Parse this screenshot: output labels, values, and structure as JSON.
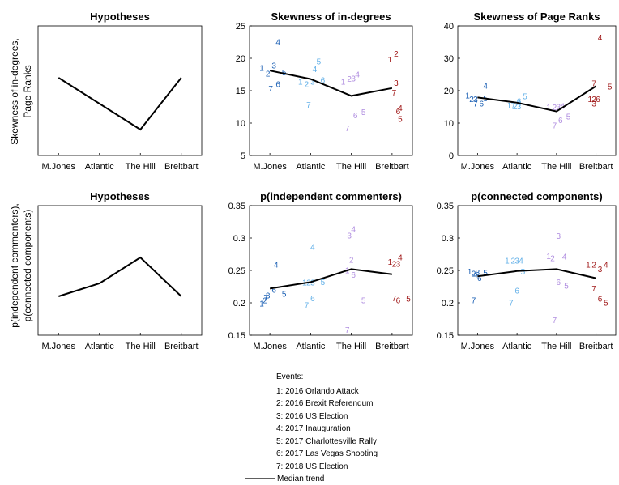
{
  "ylabels": {
    "row1": [
      "Skewness of in-degrees,",
      "Page Ranks"
    ],
    "row2": [
      "p(independent commenters),",
      "p(connected components)"
    ]
  },
  "outlets": [
    "M.Jones",
    "Atlantic",
    "The Hill",
    "Breitbart"
  ],
  "outlet_colors": [
    "#1a5fb4",
    "#62b0e8",
    "#b08ee0",
    "#a01818"
  ],
  "legend": {
    "title": "Events:",
    "items": [
      "1: 2016 Orlando Attack",
      "2: 2016 Brexit Referendum",
      "3: 2016 US Election",
      "4: 2017 Inauguration",
      "5: 2017 Charlottesville Rally",
      "6: 2017 Las Vegas Shooting",
      "7: 2018 US Election"
    ],
    "line_label": "Median trend"
  },
  "chart_data": [
    {
      "type": "line",
      "title": "Hypotheses",
      "categories": [
        "M.Jones",
        "Atlantic",
        "The Hill",
        "Breitbart"
      ],
      "series": [
        {
          "values": [
            3,
            2,
            1,
            3
          ]
        }
      ],
      "ylim": [
        0,
        5
      ],
      "grid": false,
      "show_yticks": false
    },
    {
      "type": "scatter",
      "title": "Skewness of in-degrees",
      "categories": [
        "M.Jones",
        "Atlantic",
        "The Hill",
        "Breitbart"
      ],
      "ylim": [
        5,
        25
      ],
      "yticks": [
        5,
        10,
        15,
        20,
        25
      ],
      "median": [
        18.1,
        16.8,
        14.2,
        15.4
      ],
      "points": [
        {
          "cat": 0,
          "event": "1",
          "x": -0.2,
          "y": 18.5
        },
        {
          "cat": 0,
          "event": "2",
          "x": -0.05,
          "y": 17.6
        },
        {
          "cat": 0,
          "event": "3",
          "x": 0.1,
          "y": 18.9
        },
        {
          "cat": 0,
          "event": "4",
          "x": 0.2,
          "y": 22.5
        },
        {
          "cat": 0,
          "event": "5",
          "x": 0.35,
          "y": 17.8
        },
        {
          "cat": 0,
          "event": "6",
          "x": 0.2,
          "y": 16.0
        },
        {
          "cat": 0,
          "event": "7",
          "x": 0.02,
          "y": 15.3
        },
        {
          "cat": 1,
          "event": "1",
          "x": -0.25,
          "y": 16.4
        },
        {
          "cat": 1,
          "event": "2",
          "x": -0.1,
          "y": 16.0
        },
        {
          "cat": 1,
          "event": "3",
          "x": 0.05,
          "y": 16.4
        },
        {
          "cat": 1,
          "event": "4",
          "x": 0.1,
          "y": 18.3
        },
        {
          "cat": 1,
          "event": "5",
          "x": 0.2,
          "y": 19.5
        },
        {
          "cat": 1,
          "event": "6",
          "x": 0.3,
          "y": 16.6
        },
        {
          "cat": 1,
          "event": "7",
          "x": -0.05,
          "y": 12.8
        },
        {
          "cat": 2,
          "event": "1",
          "x": -0.2,
          "y": 16.4
        },
        {
          "cat": 2,
          "event": "2",
          "x": -0.05,
          "y": 16.8
        },
        {
          "cat": 2,
          "event": "3",
          "x": 0.05,
          "y": 16.9
        },
        {
          "cat": 2,
          "event": "4",
          "x": 0.15,
          "y": 17.5
        },
        {
          "cat": 2,
          "event": "5",
          "x": 0.3,
          "y": 11.7
        },
        {
          "cat": 2,
          "event": "6",
          "x": 0.1,
          "y": 11.2
        },
        {
          "cat": 2,
          "event": "7",
          "x": -0.1,
          "y": 9.2
        },
        {
          "cat": 3,
          "event": "1",
          "x": -0.05,
          "y": 19.8
        },
        {
          "cat": 3,
          "event": "2",
          "x": 0.1,
          "y": 20.7
        },
        {
          "cat": 3,
          "event": "3",
          "x": 0.1,
          "y": 16.2
        },
        {
          "cat": 3,
          "event": "4",
          "x": 0.2,
          "y": 12.3
        },
        {
          "cat": 3,
          "event": "5",
          "x": 0.2,
          "y": 10.6
        },
        {
          "cat": 3,
          "event": "6",
          "x": 0.15,
          "y": 11.8
        },
        {
          "cat": 3,
          "event": "7",
          "x": 0.05,
          "y": 14.7
        }
      ]
    },
    {
      "type": "scatter",
      "title": "Skewness of Page Ranks",
      "categories": [
        "M.Jones",
        "Atlantic",
        "The Hill",
        "Breitbart"
      ],
      "ylim": [
        0,
        40
      ],
      "yticks": [
        0,
        10,
        20,
        30,
        40
      ],
      "median": [
        17.9,
        16.3,
        13.6,
        21.4
      ],
      "points": [
        {
          "cat": 0,
          "event": "1",
          "x": -0.25,
          "y": 18.5
        },
        {
          "cat": 0,
          "event": "2",
          "x": -0.15,
          "y": 17.4
        },
        {
          "cat": 0,
          "event": "3",
          "x": -0.05,
          "y": 17.4
        },
        {
          "cat": 0,
          "event": "4",
          "x": 0.2,
          "y": 21.5
        },
        {
          "cat": 0,
          "event": "5",
          "x": 0.2,
          "y": 17.6
        },
        {
          "cat": 0,
          "event": "6",
          "x": 0.1,
          "y": 16.0
        },
        {
          "cat": 0,
          "event": "7",
          "x": -0.05,
          "y": 16.0
        },
        {
          "cat": 1,
          "event": "1",
          "x": -0.2,
          "y": 15.4
        },
        {
          "cat": 1,
          "event": "2",
          "x": -0.05,
          "y": 15.1
        },
        {
          "cat": 1,
          "event": "3",
          "x": 0.05,
          "y": 15.1
        },
        {
          "cat": 1,
          "event": "4",
          "x": 0.05,
          "y": 16.3
        },
        {
          "cat": 1,
          "event": "5",
          "x": 0.2,
          "y": 18.2
        },
        {
          "cat": 1,
          "event": "6",
          "x": 0.05,
          "y": 16.7
        },
        {
          "cat": 1,
          "event": "7",
          "x": -0.1,
          "y": 15.2
        },
        {
          "cat": 2,
          "event": "1",
          "x": -0.2,
          "y": 14.9
        },
        {
          "cat": 2,
          "event": "2",
          "x": -0.05,
          "y": 14.9
        },
        {
          "cat": 2,
          "event": "3",
          "x": 0.05,
          "y": 15.0
        },
        {
          "cat": 2,
          "event": "4",
          "x": 0.15,
          "y": 15.3
        },
        {
          "cat": 2,
          "event": "5",
          "x": 0.3,
          "y": 12.0
        },
        {
          "cat": 2,
          "event": "6",
          "x": 0.1,
          "y": 10.9
        },
        {
          "cat": 2,
          "event": "7",
          "x": -0.05,
          "y": 9.2
        },
        {
          "cat": 3,
          "event": "1",
          "x": -0.15,
          "y": 17.4
        },
        {
          "cat": 3,
          "event": "2",
          "x": -0.05,
          "y": 17.4
        },
        {
          "cat": 3,
          "event": "3",
          "x": -0.05,
          "y": 16.0
        },
        {
          "cat": 3,
          "event": "4",
          "x": 0.1,
          "y": 36.4
        },
        {
          "cat": 3,
          "event": "5",
          "x": 0.35,
          "y": 21.3
        },
        {
          "cat": 3,
          "event": "6",
          "x": 0.05,
          "y": 17.4
        },
        {
          "cat": 3,
          "event": "7",
          "x": -0.05,
          "y": 22.3
        }
      ]
    },
    {
      "type": "line",
      "title": "Hypotheses",
      "categories": [
        "M.Jones",
        "Atlantic",
        "The Hill",
        "Breitbart"
      ],
      "series": [
        {
          "values": [
            1,
            2,
            4,
            1
          ]
        }
      ],
      "ylim": [
        -2,
        8
      ],
      "grid": false,
      "show_yticks": false
    },
    {
      "type": "scatter",
      "title": "p(independent commenters)",
      "categories": [
        "M.Jones",
        "Atlantic",
        "The Hill",
        "Breitbart"
      ],
      "ylim": [
        0.15,
        0.35
      ],
      "yticks": [
        0.15,
        0.2,
        0.25,
        0.3,
        0.35
      ],
      "median": [
        0.222,
        0.232,
        0.252,
        0.244
      ],
      "points": [
        {
          "cat": 0,
          "event": "1",
          "x": -0.2,
          "y": 0.199
        },
        {
          "cat": 0,
          "event": "2",
          "x": -0.12,
          "y": 0.204
        },
        {
          "cat": 0,
          "event": "3",
          "x": -0.05,
          "y": 0.211
        },
        {
          "cat": 0,
          "event": "4",
          "x": 0.15,
          "y": 0.259
        },
        {
          "cat": 0,
          "event": "5",
          "x": 0.35,
          "y": 0.214
        },
        {
          "cat": 0,
          "event": "6",
          "x": 0.1,
          "y": 0.22
        },
        {
          "cat": 0,
          "event": "7",
          "x": -0.1,
          "y": 0.208
        },
        {
          "cat": 1,
          "event": "1",
          "x": -0.15,
          "y": 0.231
        },
        {
          "cat": 1,
          "event": "2",
          "x": -0.05,
          "y": 0.231
        },
        {
          "cat": 1,
          "event": "3",
          "x": 0.05,
          "y": 0.231
        },
        {
          "cat": 1,
          "event": "4",
          "x": 0.05,
          "y": 0.286
        },
        {
          "cat": 1,
          "event": "5",
          "x": 0.3,
          "y": 0.232
        },
        {
          "cat": 1,
          "event": "6",
          "x": 0.05,
          "y": 0.207
        },
        {
          "cat": 1,
          "event": "7",
          "x": -0.1,
          "y": 0.196
        },
        {
          "cat": 2,
          "event": "1",
          "x": -0.1,
          "y": 0.25
        },
        {
          "cat": 2,
          "event": "2",
          "x": 0,
          "y": 0.266
        },
        {
          "cat": 2,
          "event": "3",
          "x": -0.05,
          "y": 0.304
        },
        {
          "cat": 2,
          "event": "4",
          "x": 0.05,
          "y": 0.314
        },
        {
          "cat": 2,
          "event": "5",
          "x": 0.3,
          "y": 0.204
        },
        {
          "cat": 2,
          "event": "6",
          "x": 0.05,
          "y": 0.243
        },
        {
          "cat": 2,
          "event": "7",
          "x": -0.1,
          "y": 0.158
        },
        {
          "cat": 3,
          "event": "1",
          "x": -0.05,
          "y": 0.263
        },
        {
          "cat": 3,
          "event": "2",
          "x": 0.05,
          "y": 0.26
        },
        {
          "cat": 3,
          "event": "3",
          "x": 0.15,
          "y": 0.26
        },
        {
          "cat": 3,
          "event": "4",
          "x": 0.2,
          "y": 0.27
        },
        {
          "cat": 3,
          "event": "5",
          "x": 0.4,
          "y": 0.206
        },
        {
          "cat": 3,
          "event": "6",
          "x": 0.15,
          "y": 0.204
        },
        {
          "cat": 3,
          "event": "7",
          "x": 0.05,
          "y": 0.207
        }
      ]
    },
    {
      "type": "scatter",
      "title": "p(connected components)",
      "categories": [
        "M.Jones",
        "Atlantic",
        "The Hill",
        "Breitbart"
      ],
      "ylim": [
        0.15,
        0.35
      ],
      "yticks": [
        0.15,
        0.2,
        0.25,
        0.3,
        0.35
      ],
      "median": [
        0.241,
        0.249,
        0.252,
        0.238
      ],
      "points": [
        {
          "cat": 0,
          "event": "1",
          "x": -0.2,
          "y": 0.248
        },
        {
          "cat": 0,
          "event": "2",
          "x": -0.1,
          "y": 0.245
        },
        {
          "cat": 0,
          "event": "3",
          "x": 0,
          "y": 0.247
        },
        {
          "cat": 0,
          "event": "4",
          "x": -0.05,
          "y": 0.244
        },
        {
          "cat": 0,
          "event": "5",
          "x": 0.2,
          "y": 0.246
        },
        {
          "cat": 0,
          "event": "6",
          "x": 0.05,
          "y": 0.238
        },
        {
          "cat": 0,
          "event": "7",
          "x": -0.1,
          "y": 0.204
        },
        {
          "cat": 1,
          "event": "1",
          "x": -0.25,
          "y": 0.265
        },
        {
          "cat": 1,
          "event": "2",
          "x": -0.1,
          "y": 0.265
        },
        {
          "cat": 1,
          "event": "3",
          "x": 0,
          "y": 0.265
        },
        {
          "cat": 1,
          "event": "4",
          "x": 0.1,
          "y": 0.265
        },
        {
          "cat": 1,
          "event": "5",
          "x": 0.15,
          "y": 0.248
        },
        {
          "cat": 1,
          "event": "6",
          "x": 0,
          "y": 0.219
        },
        {
          "cat": 1,
          "event": "7",
          "x": -0.15,
          "y": 0.2
        },
        {
          "cat": 2,
          "event": "1",
          "x": -0.2,
          "y": 0.272
        },
        {
          "cat": 2,
          "event": "2",
          "x": -0.1,
          "y": 0.269
        },
        {
          "cat": 2,
          "event": "3",
          "x": 0.05,
          "y": 0.303
        },
        {
          "cat": 2,
          "event": "4",
          "x": 0.2,
          "y": 0.271
        },
        {
          "cat": 2,
          "event": "5",
          "x": 0.25,
          "y": 0.226
        },
        {
          "cat": 2,
          "event": "6",
          "x": 0.05,
          "y": 0.232
        },
        {
          "cat": 2,
          "event": "7",
          "x": -0.05,
          "y": 0.173
        },
        {
          "cat": 3,
          "event": "1",
          "x": -0.2,
          "y": 0.259
        },
        {
          "cat": 3,
          "event": "2",
          "x": -0.05,
          "y": 0.259
        },
        {
          "cat": 3,
          "event": "3",
          "x": 0.1,
          "y": 0.252
        },
        {
          "cat": 3,
          "event": "4",
          "x": 0.25,
          "y": 0.259
        },
        {
          "cat": 3,
          "event": "5",
          "x": 0.25,
          "y": 0.2
        },
        {
          "cat": 3,
          "event": "6",
          "x": 0.1,
          "y": 0.206
        },
        {
          "cat": 3,
          "event": "7",
          "x": -0.05,
          "y": 0.222
        }
      ]
    }
  ]
}
